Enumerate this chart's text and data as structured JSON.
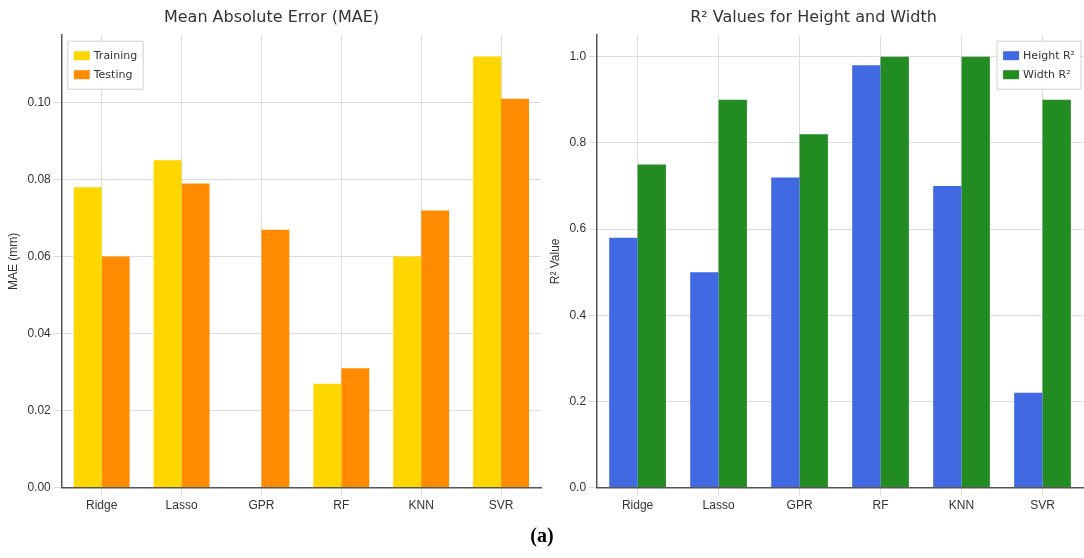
{
  "chart_data": [
    {
      "type": "bar",
      "title": "Mean Absolute Error (MAE)",
      "ylabel": "MAE (mm)",
      "categories": [
        "Ridge",
        "Lasso",
        "GPR",
        "RF",
        "KNN",
        "SVR"
      ],
      "series": [
        {
          "name": "Training",
          "color": "#ffd700",
          "values": [
            0.078,
            0.085,
            null,
            0.027,
            0.06,
            0.112
          ]
        },
        {
          "name": "Testing",
          "color": "#ff8c00",
          "values": [
            0.06,
            0.079,
            0.067,
            0.031,
            0.072,
            0.101
          ]
        }
      ],
      "ylim": [
        0,
        0.1175
      ],
      "yticks": [
        {
          "value": 0,
          "label": "0.00"
        },
        {
          "value": 0.02,
          "label": "0.02"
        },
        {
          "value": 0.04,
          "label": "0.04"
        },
        {
          "value": 0.06,
          "label": "0.06"
        },
        {
          "value": 0.08,
          "label": "0.08"
        },
        {
          "value": 0.1,
          "label": "0.10"
        }
      ],
      "grid": true,
      "legend": "top left",
      "annotations": [
        "(a)"
      ]
    },
    {
      "type": "bar",
      "title": "R² Values for Height and Width",
      "ylabel": "R² Value",
      "categories": [
        "Ridge",
        "Lasso",
        "GPR",
        "RF",
        "KNN",
        "SVR"
      ],
      "series": [
        {
          "name": "Height R²",
          "color": "#4169e1",
          "values": [
            0.58,
            0.5,
            0.72,
            0.98,
            0.7,
            0.22
          ]
        },
        {
          "name": "Width R²",
          "color": "#228b22",
          "values": [
            0.75,
            0.9,
            0.82,
            1.0,
            1.0,
            0.9
          ]
        }
      ],
      "ylim": [
        0,
        1.05
      ],
      "yticks": [
        {
          "value": 0,
          "label": "0.0"
        },
        {
          "value": 0.2,
          "label": "0.2"
        },
        {
          "value": 0.4,
          "label": "0.4"
        },
        {
          "value": 0.6,
          "label": "0.6"
        },
        {
          "value": 0.8,
          "label": "0.8"
        },
        {
          "value": 1,
          "label": "1.0"
        }
      ],
      "grid": true,
      "legend": "top right"
    }
  ]
}
